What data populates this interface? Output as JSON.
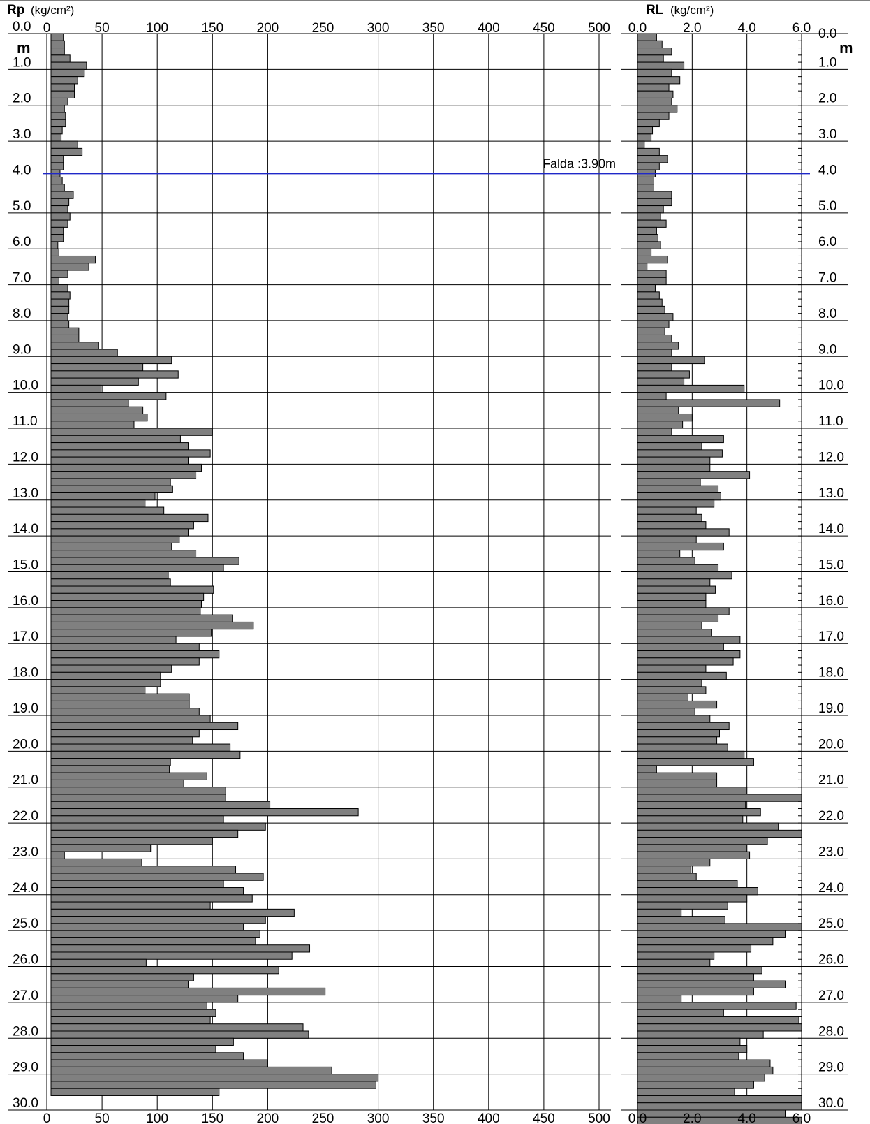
{
  "colors": {
    "bar_fill": "#808080",
    "bar_stroke": "#000000",
    "water_line": "#1f28c8",
    "grid": "#000000"
  },
  "chart_data": [
    {
      "type": "bar",
      "orientation": "horizontal",
      "panel": "Rp",
      "label": "Rp",
      "unit": "(kg/cm²)",
      "depth_unit": "m",
      "xlim": [
        0,
        500
      ],
      "x_ticks": [
        "0",
        "50",
        "100",
        "150",
        "200",
        "250",
        "300",
        "350",
        "400",
        "450",
        "500"
      ],
      "depth_labels": [
        "0.0",
        "1.0",
        "2.0",
        "3.0",
        "4.0",
        "5.0",
        "6.0",
        "7.0",
        "8.0",
        "9.0",
        "10.0",
        "11.0",
        "12.0",
        "13.0",
        "14.0",
        "15.0",
        "16.0",
        "17.0",
        "18.0",
        "19.0",
        "20.0",
        "21.0",
        "22.0",
        "23.0",
        "24.0",
        "25.0",
        "26.0",
        "27.0",
        "28.0",
        "29.0",
        "30.0"
      ],
      "ylim": [
        0,
        30.0
      ],
      "depth_step": 0.2,
      "values": [
        15,
        16,
        16,
        21,
        36,
        34,
        28,
        25,
        25,
        19,
        16,
        17,
        17,
        14,
        13,
        28,
        32,
        15,
        15,
        12,
        14,
        16,
        24,
        20,
        19,
        21,
        19,
        15,
        15,
        10,
        11,
        44,
        38,
        19,
        11,
        19,
        21,
        20,
        20,
        19,
        20,
        29,
        29,
        47,
        64,
        113,
        87,
        119,
        83,
        49,
        108,
        74,
        87,
        91,
        79,
        150,
        121,
        128,
        148,
        128,
        140,
        135,
        112,
        114,
        98,
        89,
        106,
        146,
        133,
        128,
        120,
        113,
        135,
        174,
        160,
        110,
        112,
        151,
        142,
        140,
        139,
        168,
        187,
        149,
        117,
        138,
        156,
        138,
        113,
        103,
        103,
        89,
        129,
        129,
        138,
        148,
        173,
        138,
        132,
        166,
        175,
        112,
        111,
        145,
        124,
        162,
        162,
        202,
        282,
        160,
        198,
        173,
        150,
        94,
        16,
        86,
        171,
        196,
        160,
        178,
        186,
        148,
        224,
        198,
        178,
        193,
        189,
        238,
        222,
        90,
        210,
        133,
        128,
        252,
        173,
        145,
        153,
        148,
        232,
        237,
        169,
        153,
        178,
        200,
        258,
        300,
        298,
        156
      ],
      "water_table_m": 3.9,
      "annotation": "Falda :3.90m"
    },
    {
      "type": "bar",
      "orientation": "horizontal",
      "panel": "RL",
      "label": "RL",
      "unit": "(kg/cm²)",
      "depth_unit": "m",
      "xlim": [
        0,
        6.0
      ],
      "x_ticks": [
        "0.0",
        "2.0",
        "4.0",
        "6.0"
      ],
      "depth_labels": [
        "0.0",
        "1.0",
        "2.0",
        "3.0",
        "4.0",
        "5.0",
        "6.0",
        "7.0",
        "8.0",
        "9.0",
        "10.0",
        "11.0",
        "12.0",
        "13.0",
        "14.0",
        "15.0",
        "16.0",
        "17.0",
        "18.0",
        "19.0",
        "20.0",
        "21.0",
        "22.0",
        "23.0",
        "24.0",
        "25.0",
        "26.0",
        "27.0",
        "28.0",
        "29.0",
        "30.0"
      ],
      "ylim": [
        0,
        30.0
      ],
      "depth_step": 0.2,
      "values": [
        0.7,
        0.9,
        1.25,
        0.95,
        1.7,
        1.25,
        1.55,
        1.15,
        1.3,
        1.25,
        1.45,
        1.15,
        0.8,
        0.55,
        0.5,
        0.25,
        0.8,
        1.1,
        0.8,
        0.65,
        0.6,
        0.6,
        1.25,
        1.25,
        0.95,
        0.85,
        1.05,
        0.7,
        0.75,
        0.85,
        0.5,
        1.1,
        0.35,
        1.05,
        1.05,
        0.65,
        0.8,
        0.9,
        1.0,
        1.3,
        1.15,
        1.0,
        1.25,
        1.5,
        1.25,
        2.45,
        1.25,
        1.9,
        1.7,
        3.9,
        1.05,
        5.2,
        1.5,
        2.0,
        1.65,
        1.25,
        3.15,
        2.35,
        3.1,
        2.65,
        2.65,
        4.1,
        2.3,
        2.95,
        3.05,
        2.8,
        2.15,
        2.35,
        2.5,
        3.35,
        2.15,
        3.15,
        1.55,
        2.1,
        2.95,
        3.45,
        2.65,
        2.85,
        2.5,
        2.5,
        3.35,
        2.95,
        2.35,
        2.7,
        3.75,
        3.15,
        3.75,
        3.5,
        2.5,
        3.25,
        2.35,
        2.5,
        1.85,
        2.9,
        2.1,
        2.65,
        3.35,
        3.0,
        2.9,
        3.3,
        3.9,
        4.25,
        0.7,
        2.9,
        2.9,
        4.0,
        6.05,
        3.95,
        4.5,
        3.85,
        5.15,
        6.05,
        4.75,
        4.0,
        4.1,
        2.65,
        1.95,
        2.15,
        3.65,
        4.4,
        4.0,
        3.3,
        1.6,
        3.2,
        6.05,
        5.4,
        4.95,
        4.15,
        2.8,
        2.65,
        4.55,
        4.25,
        5.4,
        4.25,
        1.6,
        5.8,
        3.15,
        5.9,
        6.05,
        4.6,
        3.75,
        4.0,
        3.7,
        4.85,
        4.95,
        4.65,
        4.25,
        3.55,
        6.05,
        6.05,
        5.4,
        6.05
      ]
    }
  ]
}
